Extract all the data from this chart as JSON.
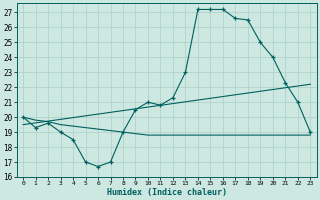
{
  "xlabel": "Humidex (Indice chaleur)",
  "background_color": "#cce8e0",
  "line_color": "#005f5f",
  "grid_color": "#aacfc8",
  "xlim": [
    -0.5,
    23.5
  ],
  "ylim": [
    16,
    27.6
  ],
  "yticks": [
    16,
    17,
    18,
    19,
    20,
    21,
    22,
    23,
    24,
    25,
    26,
    27
  ],
  "xticks": [
    0,
    1,
    2,
    3,
    4,
    5,
    6,
    7,
    8,
    9,
    10,
    11,
    12,
    13,
    14,
    15,
    16,
    17,
    18,
    19,
    20,
    21,
    22,
    23
  ],
  "series1_x": [
    0,
    1,
    2,
    3,
    4,
    5,
    6,
    7,
    8,
    9,
    10,
    11,
    12,
    13,
    14,
    15,
    16,
    17,
    18,
    19,
    20,
    21,
    22,
    23
  ],
  "series1_y": [
    20.0,
    19.3,
    19.6,
    19.0,
    18.5,
    17.0,
    16.7,
    17.0,
    19.0,
    20.5,
    21.0,
    20.8,
    21.3,
    23.0,
    27.2,
    27.2,
    27.2,
    26.6,
    26.5,
    25.0,
    24.0,
    22.3,
    21.0,
    19.0
  ],
  "series2_x": [
    0,
    1,
    2,
    3,
    4,
    5,
    6,
    7,
    8,
    9,
    10,
    11,
    12,
    13,
    14,
    15,
    16,
    17,
    18,
    19,
    20,
    21,
    22,
    23
  ],
  "series2_y": [
    20.0,
    19.8,
    19.7,
    19.5,
    19.4,
    19.3,
    19.2,
    19.1,
    19.0,
    18.9,
    18.8,
    18.8,
    18.8,
    18.8,
    18.8,
    18.8,
    18.8,
    18.8,
    18.8,
    18.8,
    18.8,
    18.8,
    18.8,
    18.8
  ],
  "series3_x": [
    0,
    23
  ],
  "series3_y": [
    19.5,
    22.2
  ]
}
